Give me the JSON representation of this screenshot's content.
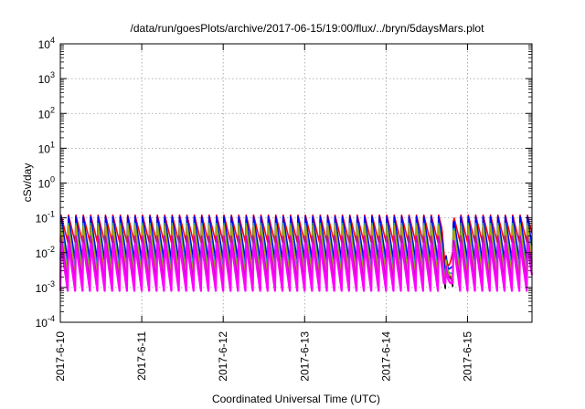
{
  "chart_data": {
    "type": "line",
    "title": "/data/run/goesPlots/archive/2017-06-15/19:00/flux/../bryn/5daysMars.plot",
    "xlabel": "Coordinated Universal Time (UTC)",
    "ylabel": "cSv/day",
    "yscale": "log",
    "ylim": [
      0.0001,
      10000
    ],
    "xlim": [
      "2017-06-10 00:00",
      "2017-06-15 19:00"
    ],
    "grid": true,
    "x_ticks": [
      "2017-6-10",
      "2017-6-11",
      "2017-6-12",
      "2017-6-13",
      "2017-6-14",
      "2017-6-15"
    ],
    "y_ticks": [
      {
        "base": "10",
        "exp": "-4"
      },
      {
        "base": "10",
        "exp": "-3"
      },
      {
        "base": "10",
        "exp": "-2"
      },
      {
        "base": "10",
        "exp": "-1"
      },
      {
        "base": "10",
        "exp": "0"
      },
      {
        "base": "10",
        "exp": "1"
      },
      {
        "base": "10",
        "exp": "2"
      },
      {
        "base": "10",
        "exp": "3"
      },
      {
        "base": "10",
        "exp": "4"
      }
    ],
    "cycles_per_day": 11,
    "series": [
      {
        "color": "#ff0000",
        "peak": 0.12,
        "trough": 0.02
      },
      {
        "color": "#000000",
        "peak": 0.1,
        "trough": 0.0012
      },
      {
        "color": "#0000ff",
        "peak": 0.11,
        "trough": 0.006
      },
      {
        "color": "#00aaaa",
        "peak": 0.07,
        "trough": 0.003
      },
      {
        "color": "#aaaa00",
        "peak": 0.06,
        "trough": 0.002
      },
      {
        "color": "#cc00cc",
        "peak": 0.03,
        "trough": 0.0015
      },
      {
        "color": "#ff00ff",
        "peak": 0.018,
        "trough": 0.0008
      }
    ],
    "dip": {
      "start": "2017-06-14 16:30",
      "end": "2017-06-14 20:00",
      "min": 0.0007
    }
  }
}
